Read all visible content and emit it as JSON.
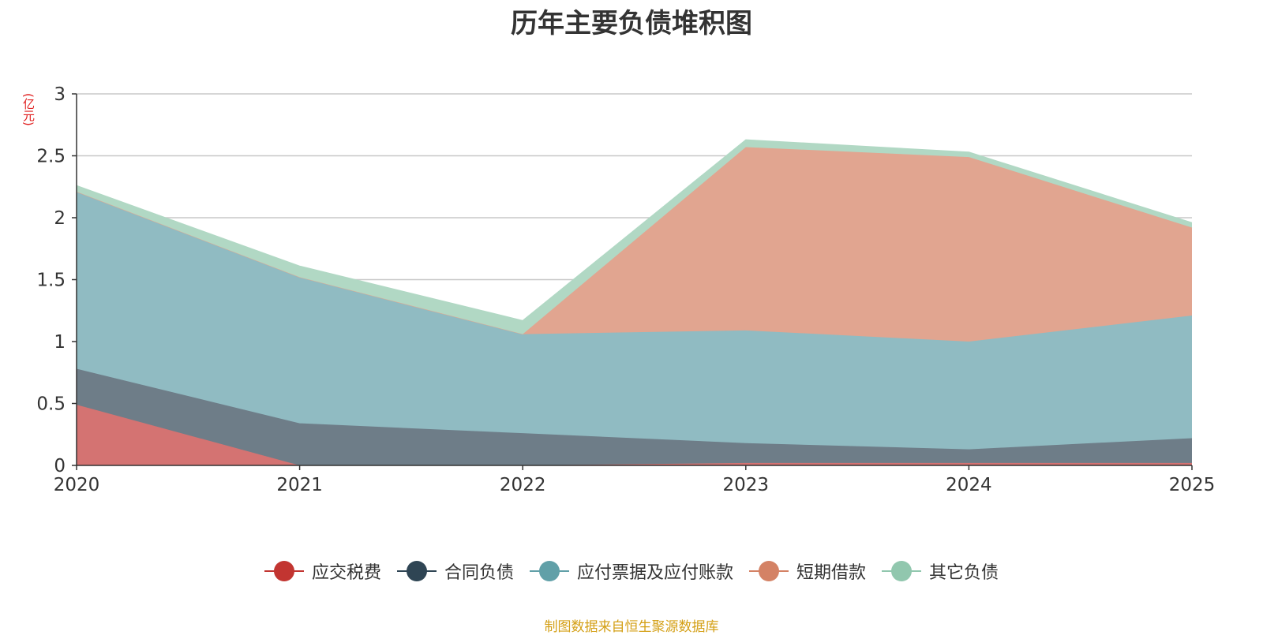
{
  "chart_data": {
    "type": "area",
    "title": "历年主要负债堆积图",
    "ylabel": "(亿元)",
    "xlabel": "",
    "categories": [
      "2020",
      "2021",
      "2022",
      "2023",
      "2024",
      "2025"
    ],
    "ylim": [
      0,
      3
    ],
    "yticks": [
      "0",
      "0.5",
      "1",
      "1.5",
      "2",
      "2.5",
      "3"
    ],
    "stacked": true,
    "grid": true,
    "legend_position": "bottom",
    "series": [
      {
        "name": "应交税费",
        "values": [
          0.49,
          0.0,
          0.0,
          0.02,
          0.02,
          0.02
        ],
        "color": "#c23531",
        "fill": "#d47372"
      },
      {
        "name": "合同负债",
        "values": [
          0.29,
          0.34,
          0.26,
          0.16,
          0.11,
          0.2
        ],
        "color": "#2f4554",
        "fill": "#6e7d88"
      },
      {
        "name": "应付票据及应付账款",
        "values": [
          1.43,
          1.18,
          0.8,
          0.91,
          0.87,
          0.99
        ],
        "color": "#61a0a8",
        "fill": "#90bbc2"
      },
      {
        "name": "短期借款",
        "values": [
          0.0,
          0.0,
          0.0,
          1.48,
          1.49,
          0.71
        ],
        "color": "#d48265",
        "fill": "#e1a590"
      },
      {
        "name": "其它负债",
        "values": [
          0.05,
          0.09,
          0.11,
          0.06,
          0.04,
          0.04
        ],
        "color": "#91c7ae",
        "fill": "#b1d8c4"
      }
    ]
  },
  "source": "制图数据来自恒生聚源数据库"
}
